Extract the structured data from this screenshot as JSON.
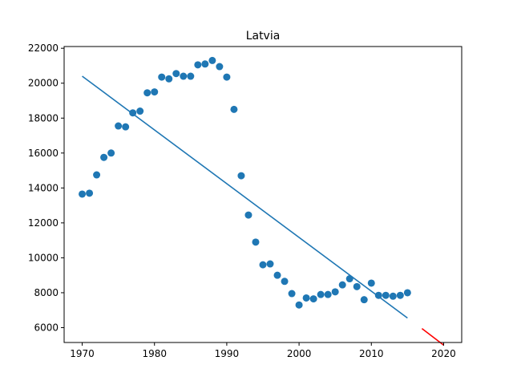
{
  "chart_data": {
    "type": "scatter",
    "title": "Latvia",
    "xlabel": "",
    "ylabel": "",
    "xlim": [
      1967.5,
      2022.5
    ],
    "ylim": [
      5150,
      22100
    ],
    "grid": false,
    "x_ticks": [
      1970,
      1980,
      1990,
      2000,
      2010,
      2020
    ],
    "y_ticks": [
      6000,
      8000,
      10000,
      12000,
      14000,
      16000,
      18000,
      20000,
      22000
    ],
    "colors": {
      "points": "#1f77b4",
      "fit": "#1f77b4",
      "forecast": "#ff0000"
    },
    "series": [
      {
        "kind": "scatter",
        "x": [
          1970,
          1971,
          1972,
          1973,
          1974,
          1975,
          1976,
          1977,
          1978,
          1979,
          1980,
          1981,
          1982,
          1983,
          1984,
          1985,
          1986,
          1987,
          1988,
          1989,
          1990,
          1991,
          1992,
          1993,
          1994,
          1995,
          1996,
          1997,
          1998,
          1999,
          2000,
          2001,
          2002,
          2003,
          2004,
          2005,
          2006,
          2007,
          2008,
          2009,
          2010,
          2011,
          2012,
          2013,
          2014,
          2015
        ],
        "y": [
          13650,
          13700,
          14750,
          15750,
          16000,
          17550,
          17500,
          18300,
          18400,
          19450,
          19500,
          20350,
          20250,
          20550,
          20400,
          20400,
          21050,
          21100,
          21300,
          20950,
          20350,
          18500,
          14700,
          12450,
          10900,
          9600,
          9650,
          9000,
          8650,
          7950,
          7300,
          7700,
          7650,
          7900,
          7900,
          8050,
          8450,
          8800,
          8350,
          7600,
          8550,
          7850,
          7850,
          7800,
          7850,
          8000
        ]
      },
      {
        "kind": "line",
        "x": [
          1970,
          2015
        ],
        "y": [
          20400,
          6550
        ]
      },
      {
        "kind": "line",
        "x": [
          2017,
          2020
        ],
        "y": [
          5950,
          5000
        ]
      }
    ]
  }
}
